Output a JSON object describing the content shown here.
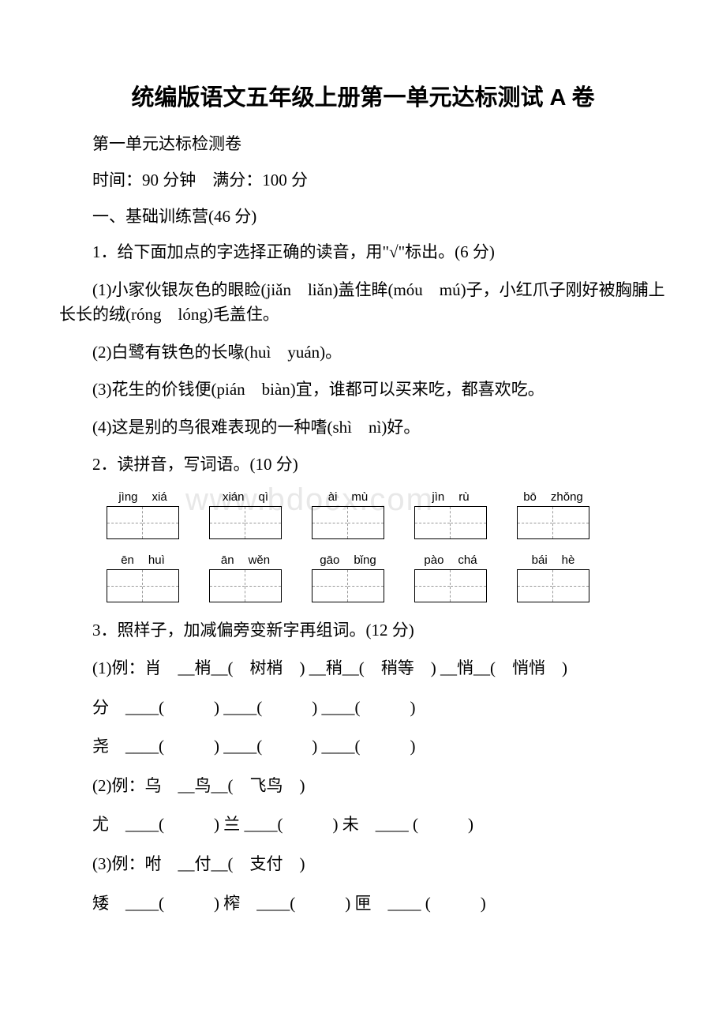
{
  "title": "统编版语文五年级上册第一单元达标测试 A 卷",
  "subtitle": "第一单元达标检测卷",
  "time_info": "时间：90 分钟　满分：100 分",
  "section1": {
    "header": "一、基础训练营(46 分)",
    "q1": {
      "text": "1．给下面加点的字选择正确的读音，用\"√\"标出。(6 分)",
      "items": [
        "(1)小家伙银灰色的眼睑(jiǎn　liǎn)盖住眸(móu　mú)子，小红爪子刚好被胸脯上长长的绒(róng　lóng)毛盖住。",
        "(2)白鹭有铁色的长喙(huì　yuán)。",
        "(3)花生的价钱便(pián　biàn)宜，谁都可以买来吃，都喜欢吃。",
        "(4)这是别的鸟很难表现的一种嗜(shì　nì)好。"
      ]
    },
    "q2": {
      "text": "2．读拼音，写词语。(10 分)",
      "row1": [
        {
          "p1": "jìng",
          "p2": "xiá"
        },
        {
          "p1": "xián",
          "p2": "qì"
        },
        {
          "p1": "ài",
          "p2": "mù"
        },
        {
          "p1": "jìn",
          "p2": "rù"
        },
        {
          "p1": "bō",
          "p2": "zhǒng"
        }
      ],
      "row2": [
        {
          "p1": "ēn",
          "p2": "huì"
        },
        {
          "p1": "ān",
          "p2": "wěn"
        },
        {
          "p1": "gāo",
          "p2": "bǐng"
        },
        {
          "p1": "pào",
          "p2": "chá"
        },
        {
          "p1": "bái",
          "p2": "hè"
        }
      ]
    },
    "q3": {
      "text": "3．照样子，加减偏旁变新字再组词。(12 分)",
      "example1": "(1)例：肖　__梢__(　树梢　) __稍__(　稍等　) __悄__(　悄悄　)",
      "line1a": "分　____(　　　) ____(　　　) ____(　　　)",
      "line1b": "尧　____(　　　) ____(　　　) ____(　　　)",
      "example2": "(2)例：乌　__鸟__(　飞鸟　)",
      "line2a": "尤　____(　　　) 兰 ____(　　　) 未　____ (　　　)",
      "example3": "(3)例：咐　__付__(　支付　)",
      "line3a": "矮　____(　　　) 榨　____(　　　) 匣　____ (　　　)"
    }
  },
  "watermark": "www.bdocx.com",
  "colors": {
    "text": "#000000",
    "background": "#ffffff",
    "watermark": "#e8e8e8",
    "grid_dash": "#999999"
  }
}
